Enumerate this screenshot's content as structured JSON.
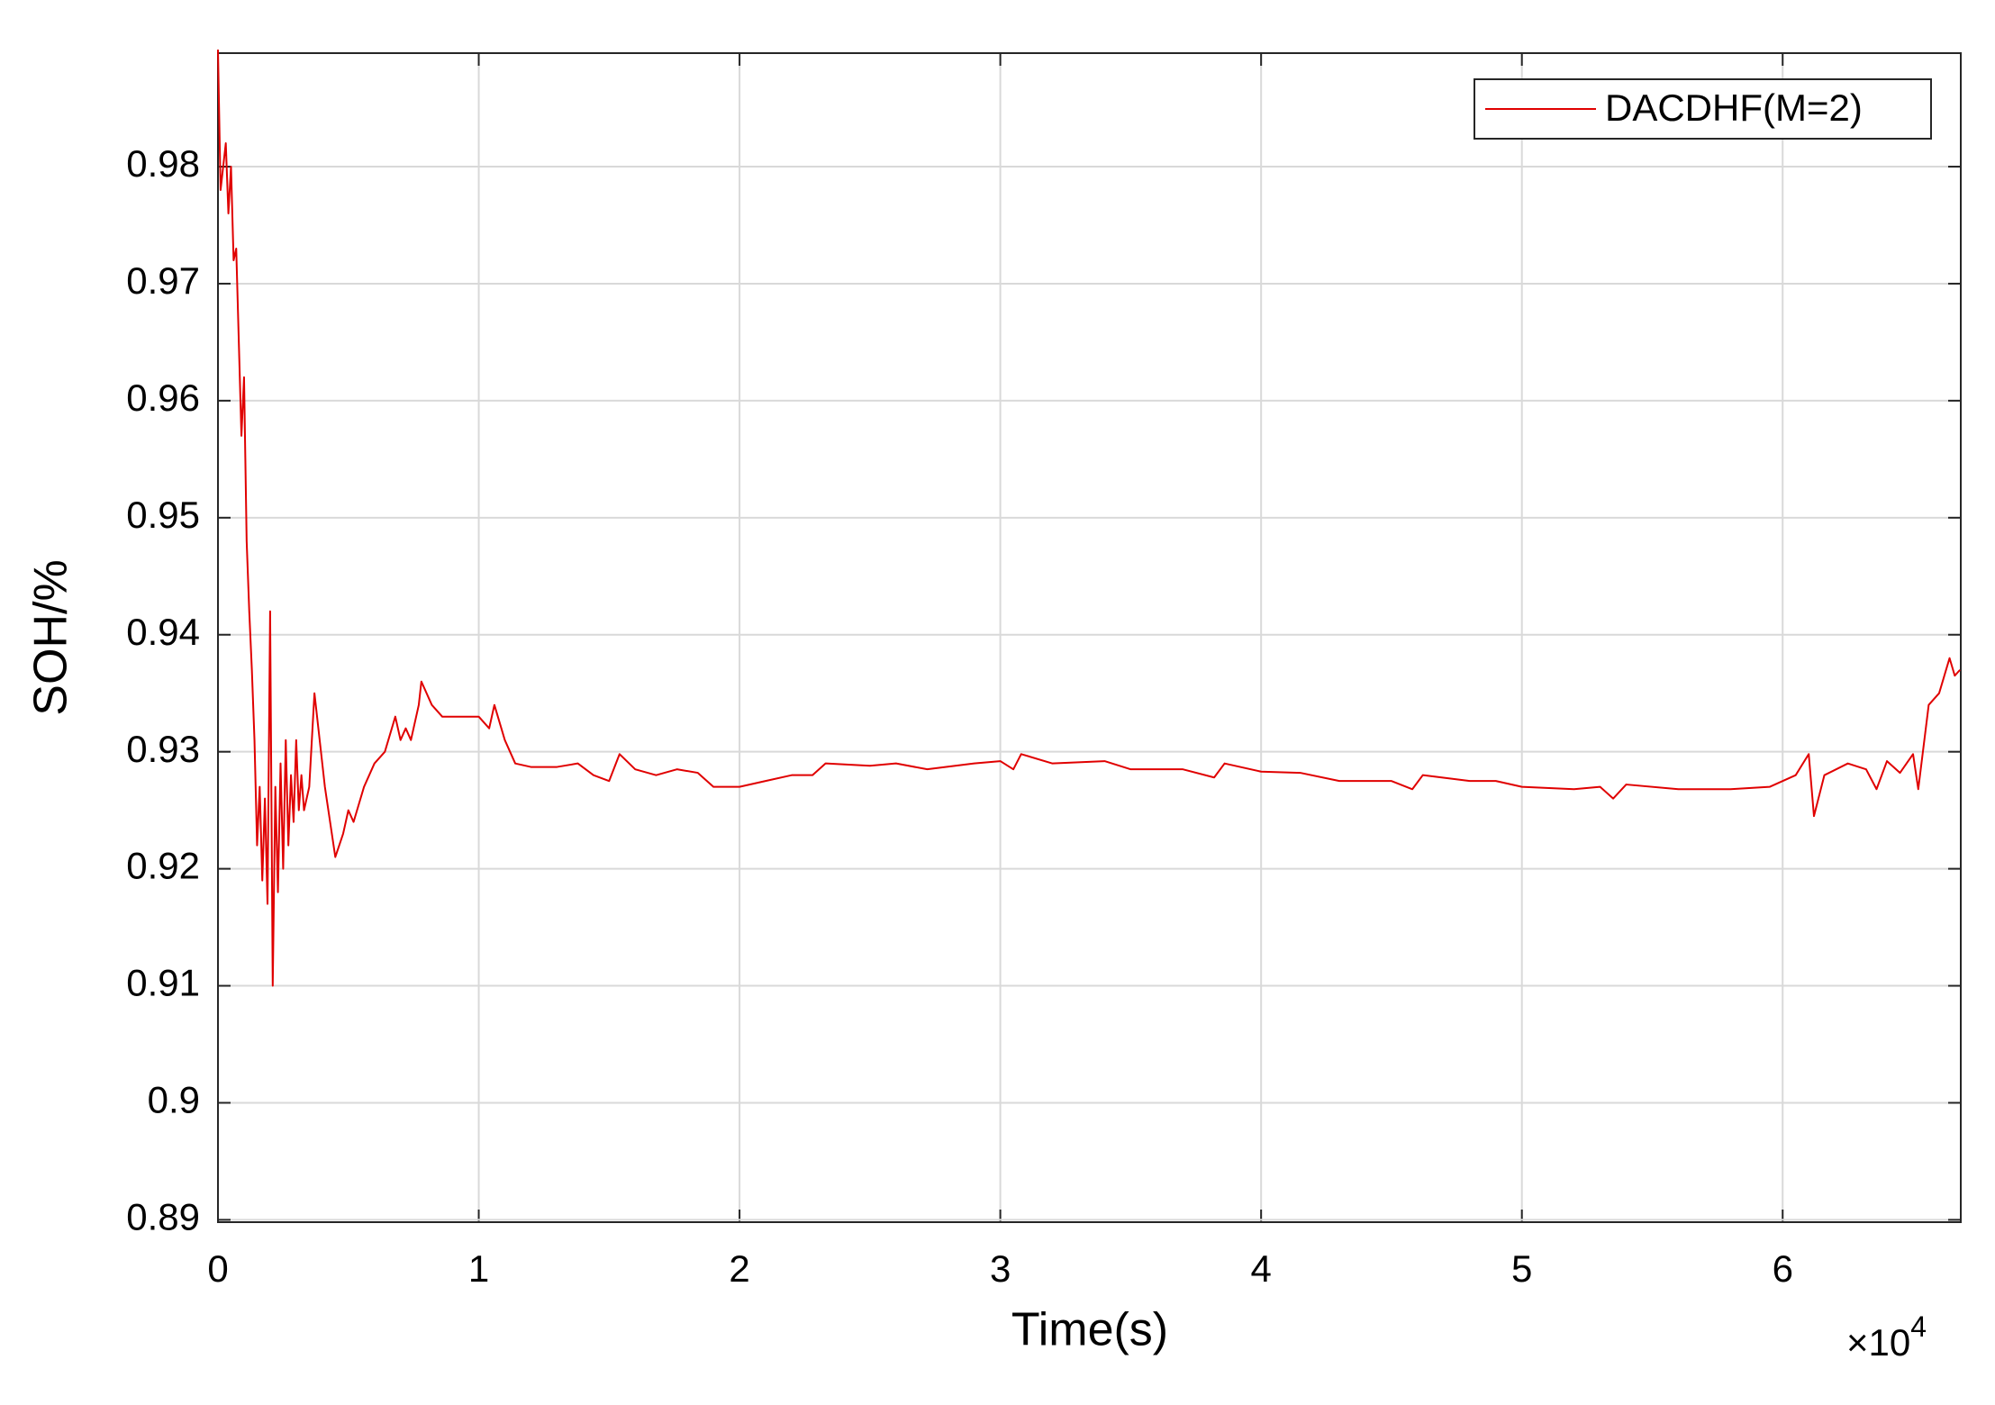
{
  "chart_data": {
    "type": "line",
    "x_label": "Time(s)",
    "y_label": "SOH/%",
    "x_multiplier": "×10",
    "x_multiplier_exponent": "4",
    "xlim": [
      0,
      6.683
    ],
    "xticks": [
      0,
      1,
      2,
      3,
      4,
      5,
      6
    ],
    "ylim": [
      0.8898,
      0.9897
    ],
    "yticks": [
      0.89,
      0.9,
      0.91,
      0.92,
      0.93,
      0.94,
      0.95,
      0.96,
      0.97,
      0.98
    ],
    "grid": true,
    "legend_location": "northeast",
    "series": [
      {
        "name": "DACDHF(M=2)",
        "color": "#e00000",
        "x": [
          0.0,
          0.01,
          0.03,
          0.04,
          0.05,
          0.06,
          0.07,
          0.08,
          0.09,
          0.1,
          0.11,
          0.12,
          0.13,
          0.14,
          0.15,
          0.16,
          0.17,
          0.18,
          0.19,
          0.2,
          0.21,
          0.22,
          0.23,
          0.24,
          0.25,
          0.26,
          0.27,
          0.28,
          0.29,
          0.3,
          0.31,
          0.32,
          0.33,
          0.35,
          0.37,
          0.39,
          0.41,
          0.43,
          0.45,
          0.48,
          0.5,
          0.52,
          0.56,
          0.6,
          0.64,
          0.68,
          0.7,
          0.72,
          0.74,
          0.77,
          0.78,
          0.82,
          0.86,
          0.9,
          0.95,
          1.0,
          1.04,
          1.06,
          1.1,
          1.14,
          1.2,
          1.3,
          1.38,
          1.44,
          1.5,
          1.54,
          1.6,
          1.68,
          1.76,
          1.84,
          1.9,
          2.0,
          2.1,
          2.2,
          2.28,
          2.33,
          2.5,
          2.6,
          2.72,
          2.9,
          3.0,
          3.05,
          3.08,
          3.2,
          3.4,
          3.5,
          3.7,
          3.82,
          3.86,
          4.0,
          4.15,
          4.3,
          4.5,
          4.58,
          4.62,
          4.8,
          4.9,
          5.0,
          5.2,
          5.3,
          5.35,
          5.4,
          5.6,
          5.8,
          5.95,
          6.0,
          6.05,
          6.1,
          6.12,
          6.16,
          6.25,
          6.32,
          6.36,
          6.4,
          6.45,
          6.5,
          6.52,
          6.56,
          6.6,
          6.64,
          6.66,
          6.68
        ],
        "values": [
          0.99,
          0.978,
          0.982,
          0.976,
          0.98,
          0.972,
          0.973,
          0.965,
          0.957,
          0.962,
          0.948,
          0.942,
          0.937,
          0.931,
          0.922,
          0.927,
          0.919,
          0.926,
          0.917,
          0.942,
          0.91,
          0.927,
          0.918,
          0.929,
          0.92,
          0.931,
          0.922,
          0.928,
          0.924,
          0.931,
          0.925,
          0.928,
          0.925,
          0.927,
          0.935,
          0.931,
          0.927,
          0.924,
          0.921,
          0.923,
          0.925,
          0.924,
          0.927,
          0.929,
          0.93,
          0.933,
          0.931,
          0.932,
          0.931,
          0.934,
          0.936,
          0.934,
          0.933,
          0.933,
          0.933,
          0.933,
          0.932,
          0.934,
          0.931,
          0.929,
          0.9287,
          0.9287,
          0.929,
          0.928,
          0.9275,
          0.9298,
          0.9285,
          0.928,
          0.9285,
          0.9282,
          0.927,
          0.927,
          0.9275,
          0.928,
          0.928,
          0.929,
          0.9288,
          0.929,
          0.9285,
          0.929,
          0.9292,
          0.9285,
          0.9298,
          0.929,
          0.9292,
          0.9285,
          0.9285,
          0.9278,
          0.929,
          0.9283,
          0.9282,
          0.9275,
          0.9275,
          0.9268,
          0.928,
          0.9275,
          0.9275,
          0.927,
          0.9268,
          0.927,
          0.926,
          0.9272,
          0.9268,
          0.9268,
          0.927,
          0.9275,
          0.928,
          0.9298,
          0.9245,
          0.928,
          0.929,
          0.9285,
          0.9268,
          0.9292,
          0.9282,
          0.9298,
          0.9268,
          0.934,
          0.935,
          0.938,
          0.9365,
          0.937
        ]
      }
    ]
  }
}
